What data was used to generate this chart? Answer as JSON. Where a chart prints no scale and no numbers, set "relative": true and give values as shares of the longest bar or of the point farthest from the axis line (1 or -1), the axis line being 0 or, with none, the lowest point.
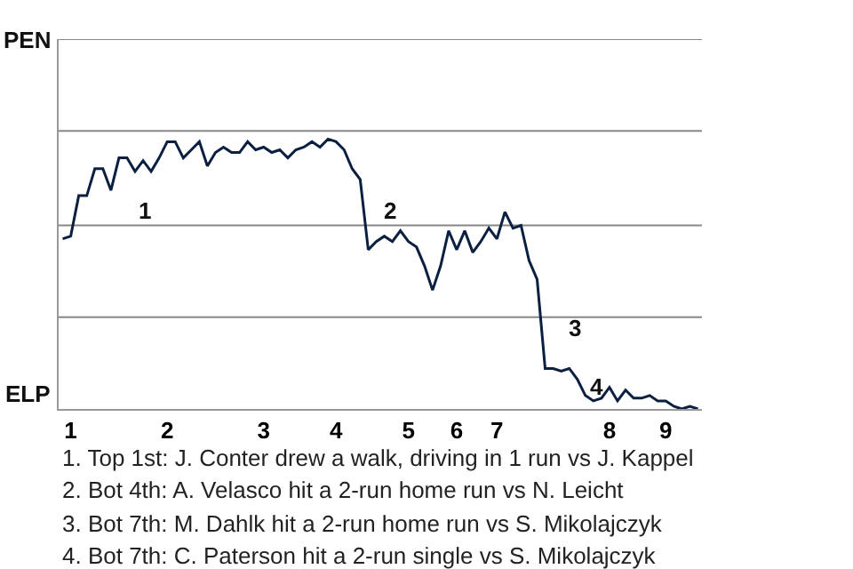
{
  "chart_data": {
    "type": "line",
    "relative": true,
    "categories": [
      null,
      "1",
      null,
      null,
      null,
      null,
      null,
      null,
      null,
      null,
      null,
      null,
      null,
      "2",
      null,
      null,
      null,
      null,
      null,
      null,
      null,
      null,
      null,
      null,
      null,
      "3",
      null,
      null,
      null,
      null,
      null,
      null,
      null,
      null,
      "4",
      null,
      null,
      null,
      null,
      null,
      null,
      null,
      null,
      "5",
      null,
      null,
      null,
      null,
      null,
      "6",
      null,
      null,
      null,
      null,
      "7",
      null,
      null,
      null,
      null,
      null,
      null,
      null,
      null,
      null,
      null,
      null,
      null,
      null,
      "8",
      null,
      null,
      null,
      null,
      null,
      null,
      "9",
      null,
      null,
      null,
      null
    ],
    "series": [
      {
        "color": "#0b1f40",
        "values": [
          0.63,
          0.64,
          0.79,
          0.79,
          0.89,
          0.89,
          0.81,
          0.93,
          0.93,
          0.88,
          0.92,
          0.88,
          0.93,
          0.99,
          0.99,
          0.93,
          0.96,
          0.99,
          0.9,
          0.95,
          0.97,
          0.95,
          0.95,
          0.99,
          0.96,
          0.97,
          0.95,
          0.96,
          0.93,
          0.96,
          0.97,
          0.99,
          0.97,
          1,
          0.99,
          0.96,
          0.89,
          0.85,
          0.59,
          0.62,
          0.64,
          0.62,
          0.66,
          0.62,
          0.6,
          0.53,
          0.44,
          0.53,
          0.66,
          0.59,
          0.66,
          0.58,
          0.62,
          0.67,
          0.63,
          0.73,
          0.67,
          0.68,
          0.55,
          0.48,
          0.15,
          0.15,
          0.14,
          0.15,
          0.11,
          0.05,
          0.03,
          0.04,
          0.08,
          0.03,
          0.07,
          0.04,
          0.04,
          0.05,
          0.03,
          0.03,
          0.01,
          0,
          0.01,
          0
        ]
      }
    ],
    "ref_lines": [
      {
        "axis": "y",
        "value": 0.34,
        "color": "#888888"
      },
      {
        "axis": "y",
        "value": 0.68,
        "color": "#888888"
      },
      {
        "axis": "y",
        "value": 1.03,
        "color": "#888888"
      },
      {
        "axis": "y",
        "value": 1.37,
        "color": "#888888"
      }
    ],
    "marker": "none",
    "line_style": "solid",
    "annotations": [
      "PEN",
      "ELP",
      "1",
      "2",
      "3",
      "4",
      "1. Top 1st: J. Conter drew a walk, driving in 1 run vs J. Kappel",
      "2. Bot 4th: A. Velasco hit a 2-run home run vs N. Leicht",
      "3. Bot 7th: M. Dahlk hit a 2-run home run vs S. Mikolajczyk",
      "4. Bot 7th: C. Paterson hit a 2-run single vs S. Mikolajczyk"
    ]
  }
}
